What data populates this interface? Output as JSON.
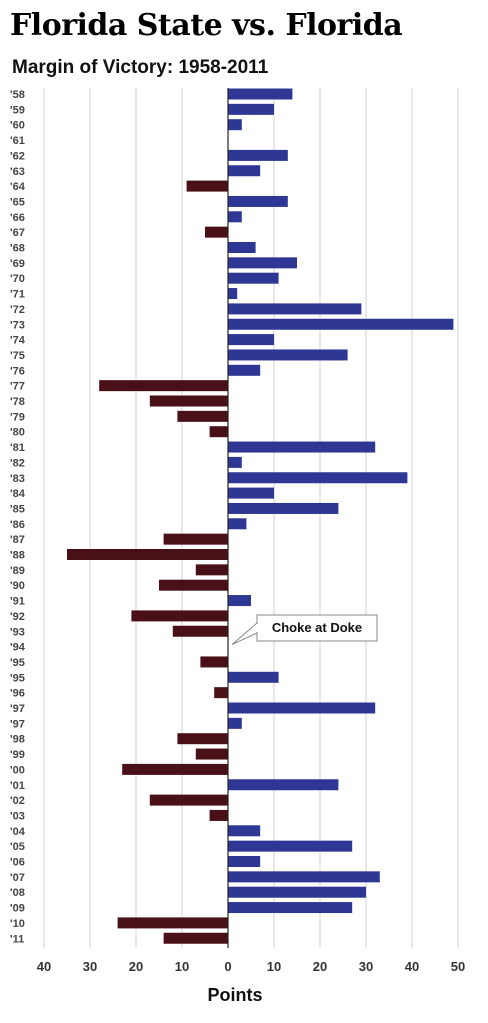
{
  "title": "Florida State vs. Florida",
  "subtitle": "Margin of Victory: 1958-2011",
  "colors": {
    "positive": "#2e3793",
    "negative": "#4a1018",
    "grid": "#d0d0d0",
    "axis": "#222222"
  },
  "chart_data": {
    "type": "bar",
    "orientation": "horizontal",
    "title": "Florida State vs. Florida",
    "subtitle": "Margin of Victory: 1958-2011",
    "xlabel": "Points",
    "xlim": [
      -40,
      50
    ],
    "xticks": [
      -40,
      -30,
      -20,
      -10,
      0,
      10,
      20,
      30,
      40,
      50
    ],
    "xtick_labels": [
      "40",
      "30",
      "20",
      "10",
      "0",
      "10",
      "20",
      "30",
      "40",
      "50"
    ],
    "grid": "vertical",
    "categories": [
      "'58",
      "'59",
      "'60",
      "'61",
      "'62",
      "'63",
      "'64",
      "'65",
      "'66",
      "'67",
      "'68",
      "'69",
      "'70",
      "'71",
      "'72",
      "'73",
      "'74",
      "'75",
      "'76",
      "'77",
      "'78",
      "'79",
      "'80",
      "'81",
      "'82",
      "'83",
      "'84",
      "'85",
      "'86",
      "'87",
      "'88",
      "'89",
      "'90",
      "'91",
      "'92",
      "'93",
      "'94",
      "'95",
      "'95",
      "'96",
      "'97",
      "'97",
      "'98",
      "'99",
      "'00",
      "'01",
      "'02",
      "'03",
      "'04",
      "'05",
      "'06",
      "'07",
      "'08",
      "'09",
      "'10",
      "'11"
    ],
    "values": [
      14,
      10,
      3,
      0,
      13,
      7,
      -9,
      13,
      3,
      -5,
      6,
      15,
      11,
      2,
      29,
      49,
      10,
      26,
      7,
      -28,
      -17,
      -11,
      -4,
      32,
      3,
      39,
      10,
      24,
      4,
      -14,
      -35,
      -7,
      -15,
      5,
      -21,
      -12,
      0,
      -6,
      11,
      -3,
      32,
      3,
      -11,
      -7,
      -23,
      24,
      -17,
      -4,
      7,
      27,
      7,
      33,
      30,
      27,
      -24,
      -14
    ],
    "annotations": [
      {
        "text": "Choke at Doke",
        "category_index": 36
      }
    ]
  }
}
